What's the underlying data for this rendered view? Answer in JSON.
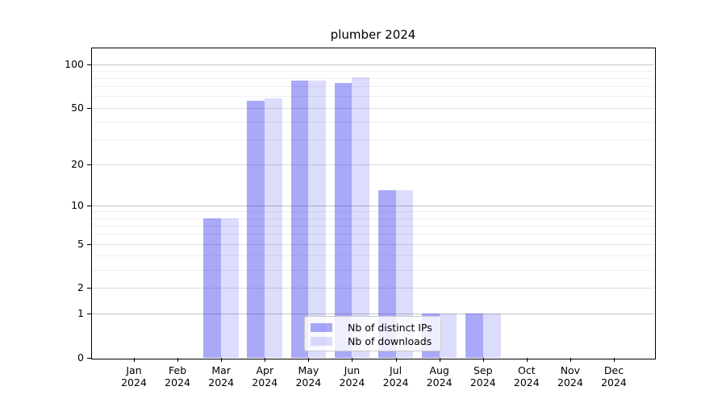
{
  "title": "plumber 2024",
  "y_axis": {
    "scale": "log1p",
    "ticks": [
      0,
      1,
      2,
      5,
      10,
      20,
      50,
      100
    ],
    "major_grid_values": [
      1,
      10,
      100
    ],
    "mid_grid_values": [
      2,
      5,
      20,
      50
    ],
    "minor_grid_values": [
      3,
      4,
      6,
      7,
      8,
      9,
      30,
      40,
      60,
      70,
      80,
      90
    ]
  },
  "x_axis": {
    "months": [
      "Jan",
      "Feb",
      "Mar",
      "Apr",
      "May",
      "Jun",
      "Jul",
      "Aug",
      "Sep",
      "Oct",
      "Nov",
      "Dec"
    ],
    "year": "2024"
  },
  "legend": {
    "items": [
      {
        "label": "Nb of distinct IPs",
        "color": "rgba(10,10,235,0.35)",
        "hex_on_white": "#a8a8f7"
      },
      {
        "label": "Nb of downloads",
        "color": "rgba(10,10,235,0.14)",
        "hex_on_white": "#dbdbfc"
      }
    ]
  },
  "colors": {
    "bar_distinct_ips": "#a8a8f7",
    "bar_downloads": "#dbdbfc",
    "grid_major": "#c4c4c4",
    "grid_minor": "#efefef",
    "axis": "#000000",
    "background": "#ffffff"
  },
  "chart_data": {
    "type": "bar",
    "title": "plumber 2024",
    "categories": [
      "Jan 2024",
      "Feb 2024",
      "Mar 2024",
      "Apr 2024",
      "May 2024",
      "Jun 2024",
      "Jul 2024",
      "Aug 2024",
      "Sep 2024",
      "Oct 2024",
      "Nov 2024",
      "Dec 2024"
    ],
    "series": [
      {
        "name": "Nb of distinct IPs",
        "values": [
          0,
          0,
          8,
          56,
          77,
          74,
          13,
          1,
          1,
          0,
          0,
          0
        ]
      },
      {
        "name": "Nb of downloads",
        "values": [
          0,
          0,
          8,
          58,
          77,
          81,
          13,
          1,
          1,
          0,
          0,
          0
        ]
      }
    ],
    "xlabel": "",
    "ylabel": "",
    "yscale": "log1p",
    "yticks": [
      0,
      1,
      2,
      5,
      10,
      20,
      50,
      100
    ],
    "ylim": [
      0,
      127
    ],
    "grid": true,
    "legend_position": "inside lower center"
  }
}
